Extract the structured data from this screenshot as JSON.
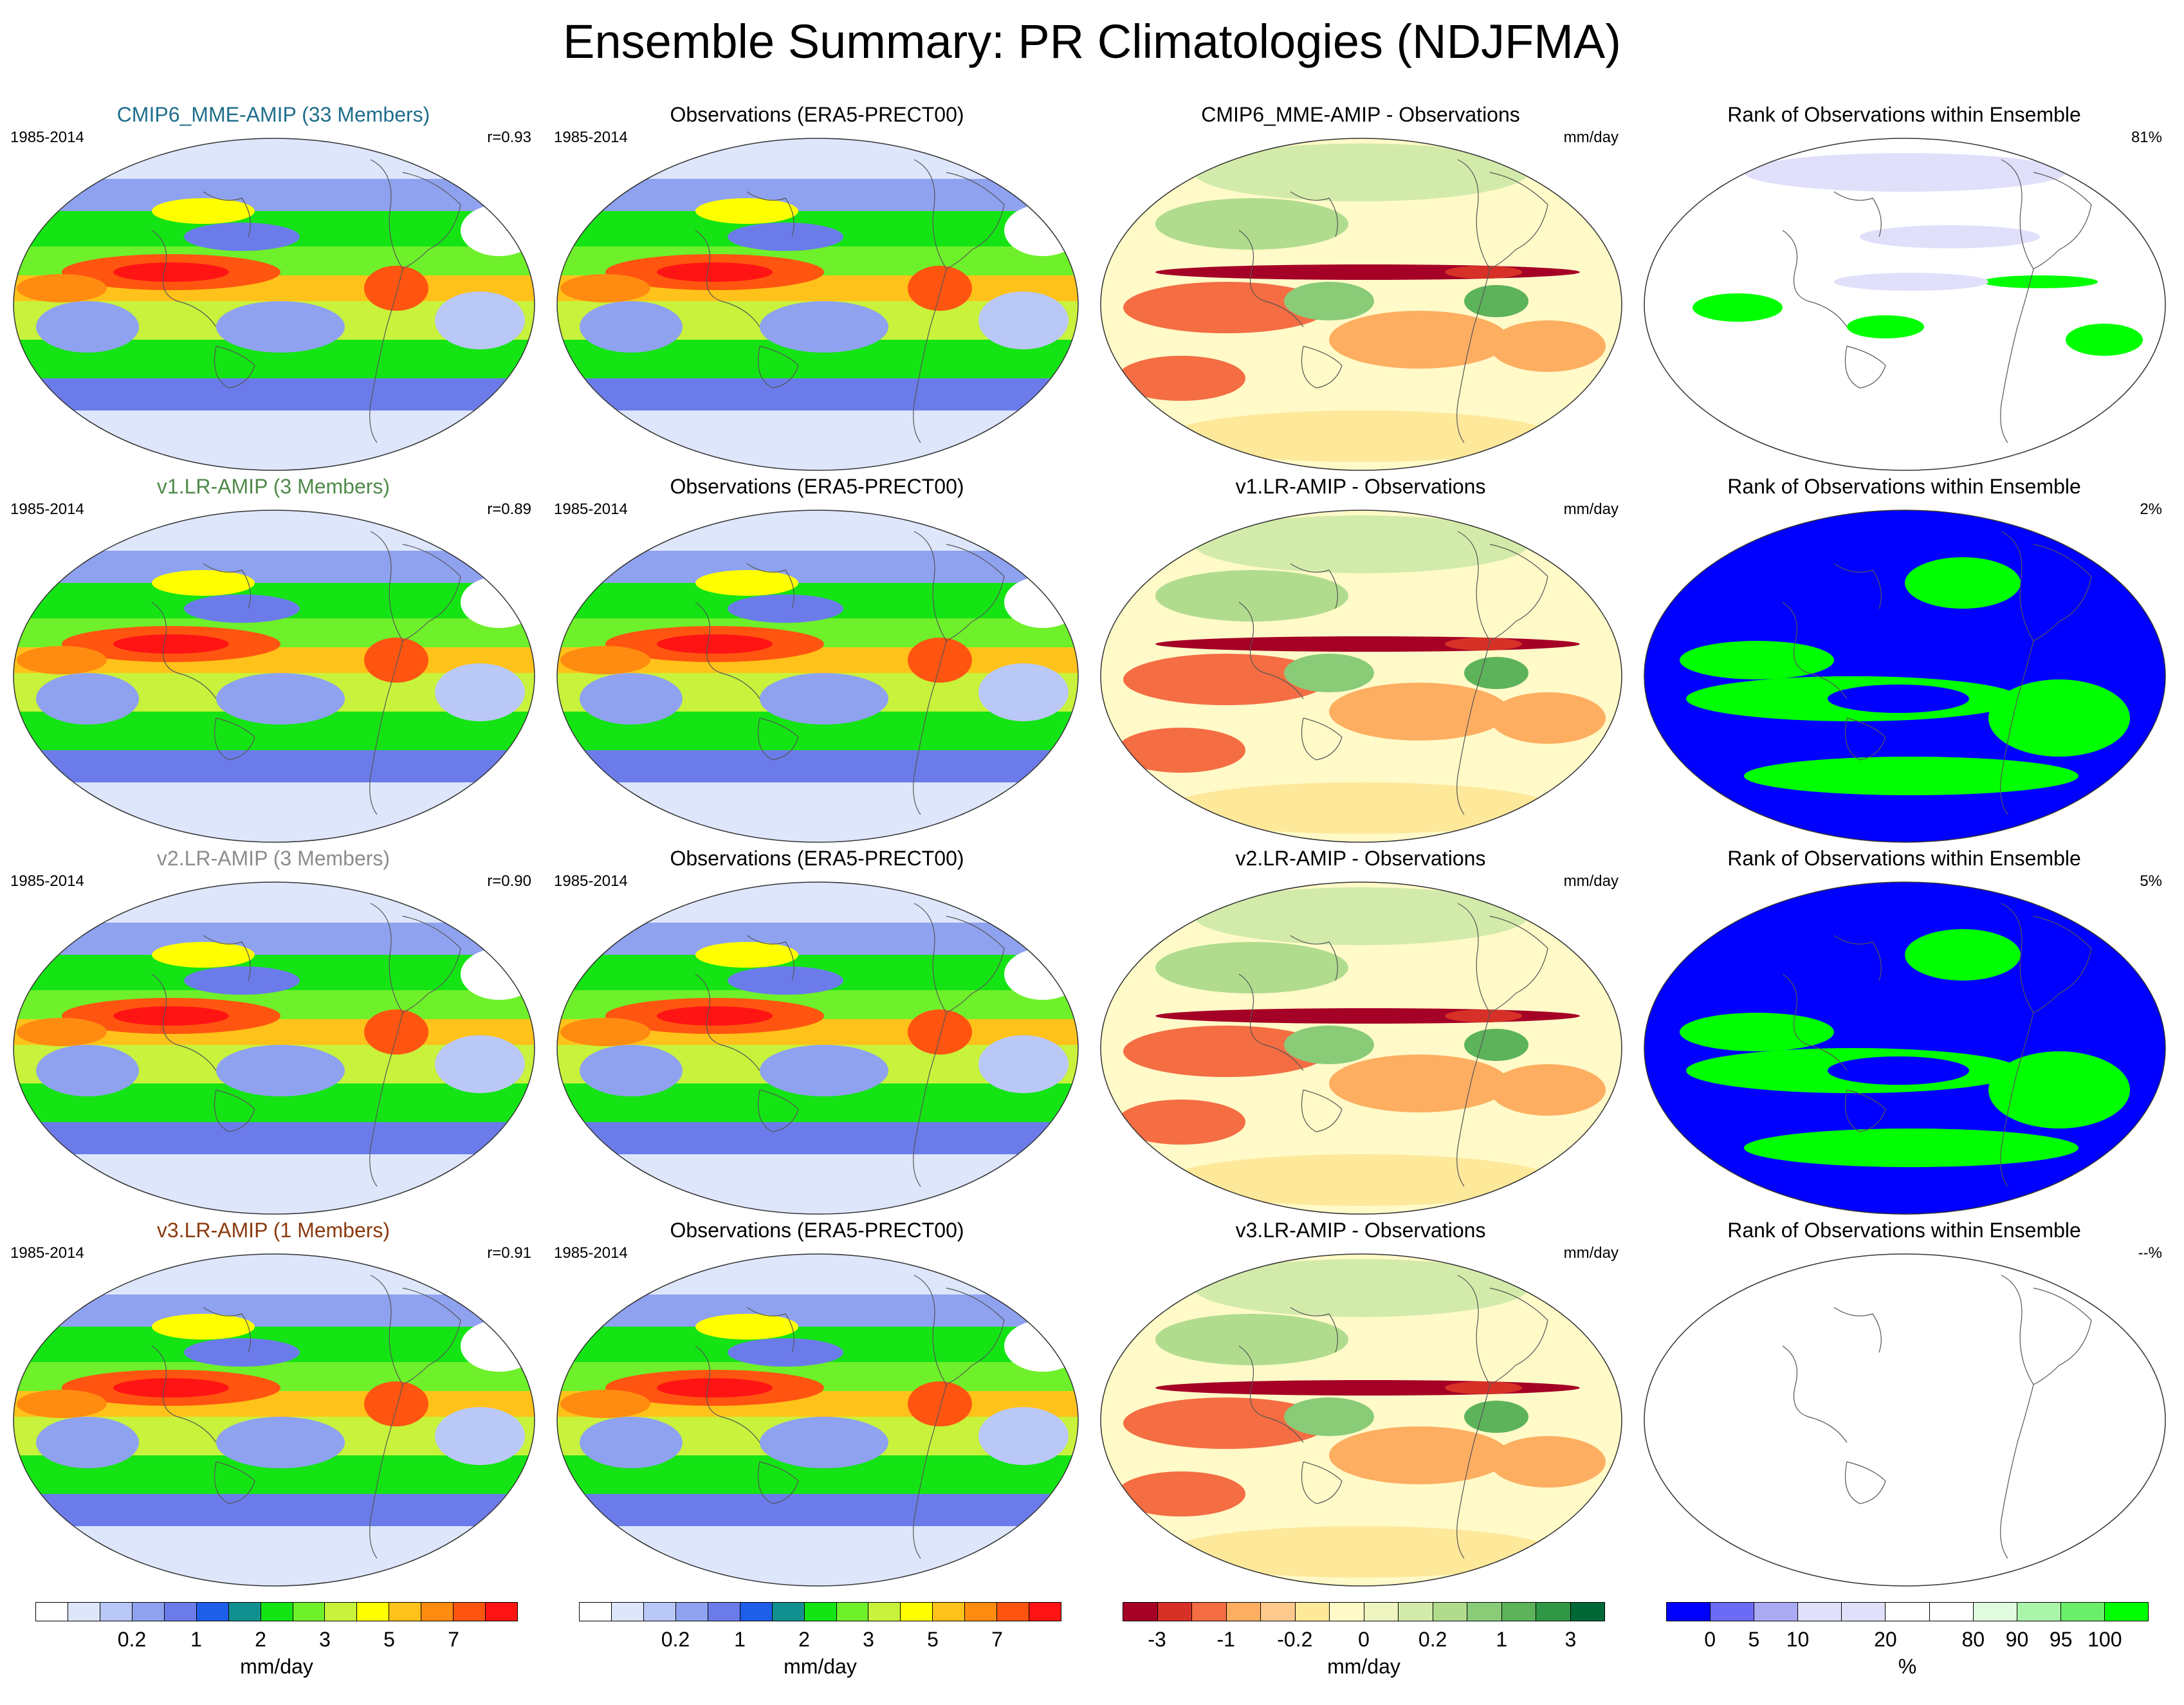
{
  "title": "Ensemble Summary: PR Climatologies (NDJFMA)",
  "rows": [
    {
      "model_title": "CMIP6_MME-AMIP (33 Members)",
      "model_color": "#1f6e8c",
      "years": "1985-2014",
      "corr": "r=0.93",
      "obs_title": "Observations (ERA5-PRECT00)",
      "obs_years": "1985-2014",
      "diff_title": "CMIP6_MME-AMIP - Observations",
      "diff_units": "mm/day",
      "rank_title": "Rank of Observations within Ensemble",
      "rank_pct": "81%",
      "rank_style": "sparse"
    },
    {
      "model_title": "v1.LR-AMIP (3 Members)",
      "model_color": "#4f8a4a",
      "years": "1985-2014",
      "corr": "r=0.89",
      "obs_title": "Observations (ERA5-PRECT00)",
      "obs_years": "1985-2014",
      "diff_title": "v1.LR-AMIP - Observations",
      "diff_units": "mm/day",
      "rank_title": "Rank of Observations within Ensemble",
      "rank_pct": "2%",
      "rank_style": "dense"
    },
    {
      "model_title": "v2.LR-AMIP (3 Members)",
      "model_color": "#8c8c8c",
      "years": "1985-2014",
      "corr": "r=0.90",
      "obs_title": "Observations (ERA5-PRECT00)",
      "obs_years": "1985-2014",
      "diff_title": "v2.LR-AMIP - Observations",
      "diff_units": "mm/day",
      "rank_title": "Rank of Observations within Ensemble",
      "rank_pct": "5%",
      "rank_style": "dense"
    },
    {
      "model_title": "v3.LR-AMIP (1 Members)",
      "model_color": "#8b3a0e",
      "years": "1985-2014",
      "corr": "r=0.91",
      "obs_title": "Observations (ERA5-PRECT00)",
      "obs_years": "1985-2014",
      "diff_title": "v3.LR-AMIP - Observations",
      "diff_units": "mm/day",
      "rank_title": "Rank of Observations within Ensemble",
      "rank_pct": "--%",
      "rank_style": "empty"
    }
  ],
  "colorbars": [
    {
      "units": "mm/day",
      "colors": [
        "#ffffff",
        "#dde6fb",
        "#b9c8f6",
        "#8fa2ef",
        "#6b7cea",
        "#1e5ee8",
        "#11908f",
        "#14e414",
        "#6ef02a",
        "#c8f23c",
        "#ffff00",
        "#ffc21a",
        "#ff8c10",
        "#ff5510",
        "#ff1414"
      ],
      "tick_labels": [
        "0.2",
        "1",
        "2",
        "3",
        "5",
        "7"
      ],
      "tick_positions": [
        3,
        5,
        7,
        9,
        11,
        13
      ]
    },
    {
      "units": "mm/day",
      "colors": [
        "#ffffff",
        "#dde6fb",
        "#b9c8f6",
        "#8fa2ef",
        "#6b7cea",
        "#1e5ee8",
        "#11908f",
        "#14e414",
        "#6ef02a",
        "#c8f23c",
        "#ffff00",
        "#ffc21a",
        "#ff8c10",
        "#ff5510",
        "#ff1414"
      ],
      "tick_labels": [
        "0.2",
        "1",
        "2",
        "3",
        "5",
        "7"
      ],
      "tick_positions": [
        3,
        5,
        7,
        9,
        11,
        13
      ]
    },
    {
      "units": "mm/day",
      "colors": [
        "#a50026",
        "#d73027",
        "#f46d43",
        "#fdae61",
        "#fdc98c",
        "#fee89a",
        "#fffac8",
        "#eff5c0",
        "#d3ebaa",
        "#b1dc8e",
        "#8acb78",
        "#5cb35a",
        "#2f9746",
        "#006837"
      ],
      "tick_labels": [
        "-3",
        "-1",
        "-0.2",
        "0",
        "0.2",
        "1",
        "3"
      ],
      "tick_positions": [
        1,
        3,
        5,
        7,
        9,
        11,
        13
      ]
    },
    {
      "units": "%",
      "colors": [
        "#0000ff",
        "#6b6bf5",
        "#aaaaf2",
        "#e0e0fb",
        "#e0e0fb",
        "#ffffff",
        "#ffffff",
        "#e0fbe0",
        "#aaf5aa",
        "#6bef6b",
        "#00ff00"
      ],
      "tick_labels": [
        "0",
        "5",
        "10",
        "20",
        "80",
        "90",
        "95",
        "100"
      ],
      "tick_positions": [
        1,
        2,
        3,
        5,
        7,
        8,
        9,
        10
      ]
    }
  ]
}
